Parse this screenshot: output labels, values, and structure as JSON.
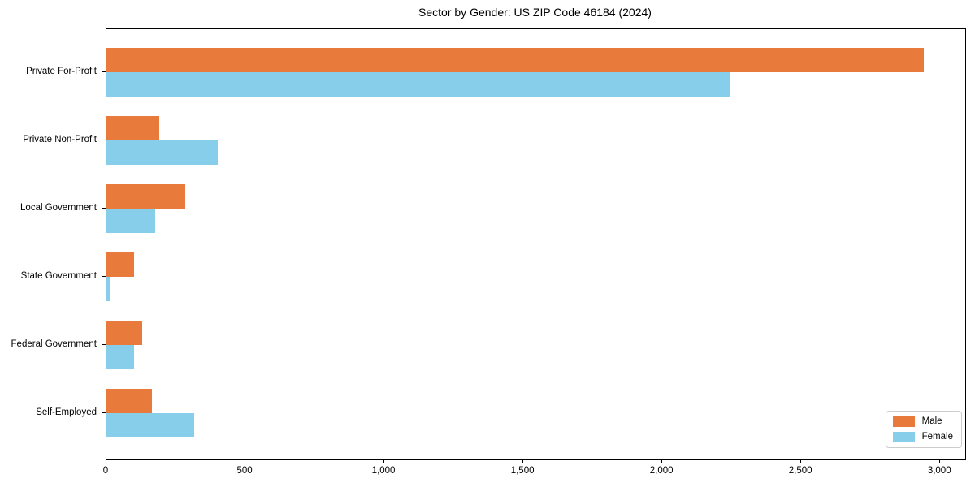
{
  "chart_data": {
    "type": "bar",
    "orientation": "horizontal",
    "title": "Sector by Gender: US ZIP Code 46184 (2024)",
    "categories": [
      "Private For-Profit",
      "Private Non-Profit",
      "Local Government",
      "State Government",
      "Federal Government",
      "Self-Employed"
    ],
    "series": [
      {
        "name": "Male",
        "color": "#E87B3C",
        "values": [
          2940,
          190,
          285,
          100,
          130,
          165
        ]
      },
      {
        "name": "Female",
        "color": "#87CEEB",
        "values": [
          2245,
          400,
          175,
          15,
          100,
          315
        ]
      }
    ],
    "xlabel": "",
    "ylabel": "",
    "xlim": [
      0,
      3090
    ],
    "xtick_values": [
      0,
      500,
      1000,
      1500,
      2000,
      2500,
      3000
    ],
    "xtick_labels": [
      "0",
      "500",
      "1,000",
      "1,500",
      "2,000",
      "2,500",
      "3,000"
    ],
    "grid": false,
    "legend": {
      "position": "lower right",
      "entries": [
        "Male",
        "Female"
      ]
    }
  }
}
